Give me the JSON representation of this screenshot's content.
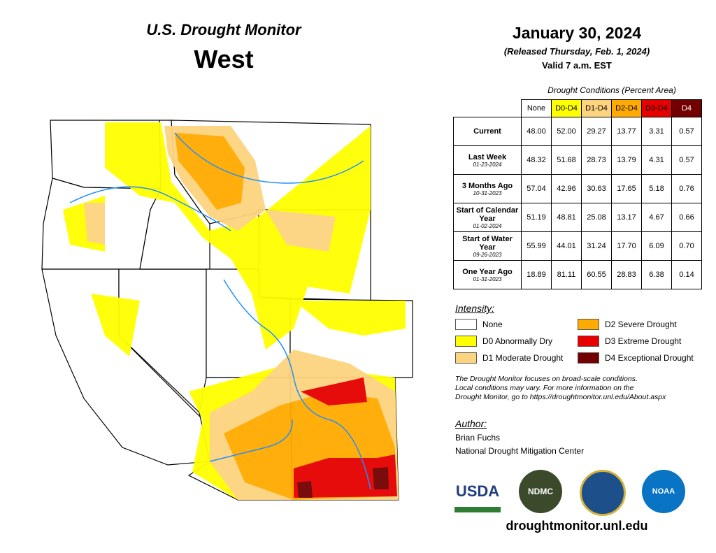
{
  "header": {
    "program": "U.S. Drought Monitor",
    "region": "West"
  },
  "date": {
    "title": "January 30, 2024",
    "released": "(Released Thursday, Feb. 1, 2024)",
    "valid": "Valid 7 a.m. EST"
  },
  "table": {
    "caption": "Drought Conditions (Percent Area)",
    "columns": [
      {
        "label": "None",
        "color": "#ffffff"
      },
      {
        "label": "D0-D4",
        "color": "#ffff00"
      },
      {
        "label": "D1-D4",
        "color": "#fcd37f"
      },
      {
        "label": "D2-D4",
        "color": "#ffaa00"
      },
      {
        "label": "D3-D4",
        "color": "#e60000"
      },
      {
        "label": "D4",
        "color": "#730000"
      }
    ],
    "rows": [
      {
        "label": "Current",
        "values": [
          "48.00",
          "52.00",
          "29.27",
          "13.77",
          "3.31",
          "0.57"
        ]
      },
      {
        "label": "Last Week",
        "date": "01-23-2024",
        "values": [
          "48.32",
          "51.68",
          "28.73",
          "13.79",
          "4.31",
          "0.57"
        ]
      },
      {
        "label": "3 Months Ago",
        "date": "10-31-2023",
        "values": [
          "57.04",
          "42.96",
          "30.63",
          "17.65",
          "5.18",
          "0.76"
        ]
      },
      {
        "label": "Start of Calendar Year",
        "date": "01-02-2024",
        "values": [
          "51.19",
          "48.81",
          "25.08",
          "13.17",
          "4.67",
          "0.66"
        ]
      },
      {
        "label": "Start of Water Year",
        "date": "09-26-2023",
        "values": [
          "55.99",
          "44.01",
          "31.24",
          "17.70",
          "6.09",
          "0.70"
        ]
      },
      {
        "label": "One Year Ago",
        "date": "01-31-2023",
        "values": [
          "18.89",
          "81.11",
          "60.55",
          "28.83",
          "6.38",
          "0.14"
        ]
      }
    ]
  },
  "legend": {
    "title": "Intensity:",
    "items": [
      {
        "label": "None",
        "color": "#ffffff"
      },
      {
        "label": "D0 Abnormally Dry",
        "color": "#ffff00"
      },
      {
        "label": "D1 Moderate Drought",
        "color": "#fcd37f"
      },
      {
        "label": "D2 Severe Drought",
        "color": "#ffaa00"
      },
      {
        "label": "D3 Extreme Drought",
        "color": "#e60000"
      },
      {
        "label": "D4 Exceptional Drought",
        "color": "#730000"
      }
    ]
  },
  "note": [
    "The Drought Monitor focuses on broad-scale conditions.",
    "Local conditions may vary. For more information on the",
    "Drought Monitor, go to https://droughtmonitor.unl.edu/About.aspx"
  ],
  "author": {
    "heading": "Author:",
    "name": "Brian Fuchs",
    "org": "National Drought Mitigation Center"
  },
  "logos": [
    "USDA",
    "NDMC",
    "NOAA"
  ],
  "url": "droughtmonitor.unl.edu"
}
